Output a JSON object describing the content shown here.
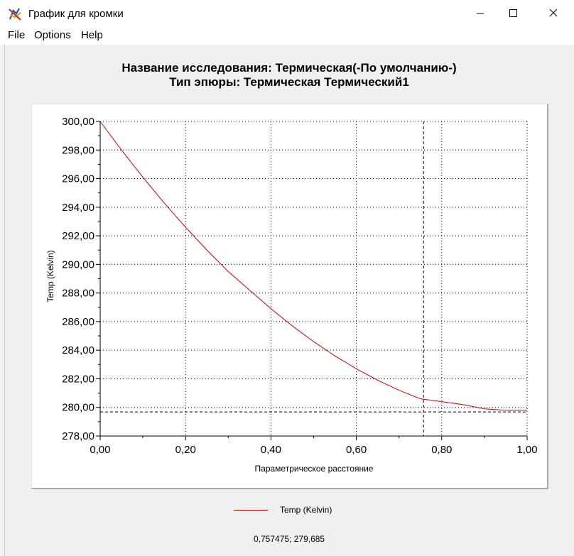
{
  "window": {
    "title": "График для кромки",
    "icons": {
      "app": "chart-app-icon",
      "minimize": "minimize-icon",
      "maximize": "maximize-icon",
      "close": "close-icon"
    }
  },
  "menu": [
    "File",
    "Options",
    "Help"
  ],
  "chart": {
    "title_line1": "Название исследования: Термическая(-По умолчанию-)",
    "title_line2": "Тип эпюры: Термическая Термический1",
    "ylabel": "Temp (Kelvin)",
    "xlabel": "Параметрическое расстояние",
    "legend": "Temp (Kelvin)",
    "xticks": [
      "0,00",
      "0,20",
      "0,40",
      "0,60",
      "0,80",
      "1,00"
    ],
    "yticks": [
      "278,00",
      "280,00",
      "282,00",
      "284,00",
      "286,00",
      "288,00",
      "290,00",
      "292,00",
      "294,00",
      "296,00",
      "298,00",
      "300,00"
    ],
    "series_color": "#d00000"
  },
  "chart_data": {
    "type": "line",
    "xlabel": "Параметрическое расстояние",
    "ylabel": "Temp (Kelvin)",
    "xlim": [
      0,
      1
    ],
    "ylim": [
      278,
      300
    ],
    "grid": true,
    "legend_position": "bottom",
    "series": [
      {
        "name": "Temp (Kelvin)",
        "x": [
          0,
          0.05,
          0.1,
          0.15,
          0.2,
          0.25,
          0.3,
          0.35,
          0.4,
          0.45,
          0.5,
          0.55,
          0.6,
          0.65,
          0.7,
          0.75,
          0.8,
          0.85,
          0.9,
          0.95,
          1
        ],
        "y": [
          300.0,
          298.0,
          296.1,
          294.3,
          292.6,
          291.0,
          289.5,
          288.2,
          286.9,
          285.7,
          284.6,
          283.6,
          282.7,
          281.9,
          281.2,
          280.6,
          280.4,
          280.2,
          279.9,
          279.8,
          279.8
        ]
      }
    ],
    "cursor": {
      "x": 0.757475,
      "y": 279.685
    }
  },
  "status": {
    "readout": "0,757475; 279,685"
  }
}
